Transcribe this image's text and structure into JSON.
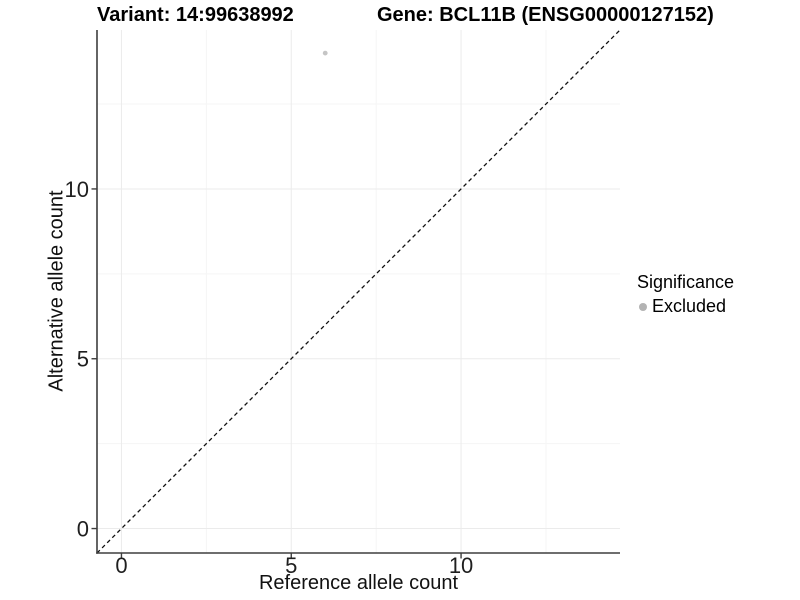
{
  "chart_data": {
    "type": "scatter",
    "title_left": "Variant: 14:99638992",
    "title_right": "Gene: BCL11B (ENSG00000127152)",
    "xlabel": "Reference allele count",
    "ylabel": "Alternative allele count",
    "xlim": [
      -0.72,
      14.68
    ],
    "ylim": [
      -0.72,
      14.68
    ],
    "x_ticks": [
      0,
      5,
      10
    ],
    "y_ticks": [
      0,
      5,
      10
    ],
    "x_minor_ticks": [
      2.5,
      7.5,
      12.5
    ],
    "y_minor_ticks": [
      2.5,
      7.5,
      12.5
    ],
    "grid": true,
    "points": [
      {
        "x": 6,
        "y": 14,
        "series": "Excluded"
      }
    ],
    "identity_line": {
      "style": "dashed",
      "from": [
        -0.72,
        -0.72
      ],
      "to": [
        14.68,
        14.68
      ]
    },
    "legend": {
      "title": "Significance",
      "position": "right",
      "items": [
        {
          "label": "Excluded",
          "marker": "circle",
          "color": "#b3b3b3"
        }
      ]
    },
    "colors": {
      "point": "#c5c5c5",
      "grid_major": "#ebebeb",
      "grid_minor": "#f5f5f5",
      "axis_line": "#3e3e3e",
      "tick_text": "#1f1f1f",
      "identity_line": "#111111",
      "background": "#ffffff"
    }
  }
}
